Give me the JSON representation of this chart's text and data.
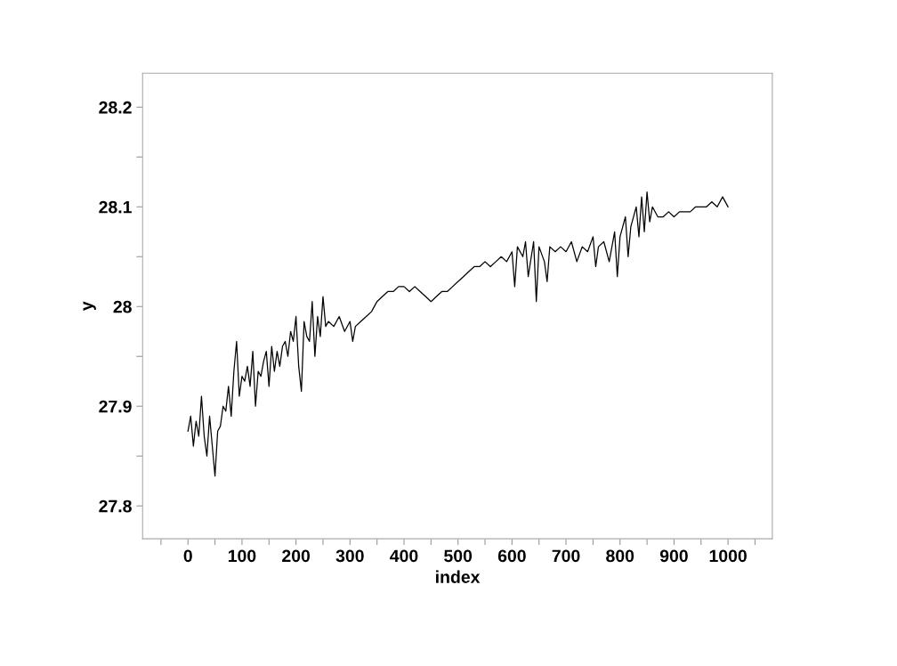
{
  "chart_data": {
    "type": "line",
    "xlabel": "index",
    "ylabel": "y",
    "xlim": [
      -84,
      1082
    ],
    "ylim": [
      27.767,
      28.234
    ],
    "xticks": [
      {
        "value": -50,
        "label": null
      },
      0,
      {
        "value": 50,
        "label": null
      },
      100,
      {
        "value": 150,
        "label": null
      },
      200,
      {
        "value": 250,
        "label": null
      },
      300,
      {
        "value": 350,
        "label": null
      },
      400,
      {
        "value": 450,
        "label": null
      },
      500,
      {
        "value": 550,
        "label": null
      },
      600,
      {
        "value": 650,
        "label": null
      },
      700,
      {
        "value": 750,
        "label": null
      },
      800,
      {
        "value": 850,
        "label": null
      },
      900,
      {
        "value": 950,
        "label": null
      },
      1000,
      {
        "value": 1050,
        "label": null
      }
    ],
    "yticks": [
      27.8,
      {
        "value": 27.85,
        "label": null
      },
      27.9,
      {
        "value": 27.95,
        "label": null
      },
      {
        "value": 28,
        "label": "28"
      },
      {
        "value": 28.05,
        "label": null
      },
      28.1,
      {
        "value": 28.15,
        "label": null
      },
      28.2
    ],
    "grid": false,
    "legend": false,
    "marker": "none",
    "line_style": "solid",
    "series": [
      {
        "color": "#000000",
        "x": [
          0,
          5,
          10,
          15,
          20,
          25,
          30,
          35,
          40,
          45,
          50,
          55,
          60,
          65,
          70,
          75,
          80,
          85,
          90,
          95,
          100,
          105,
          110,
          115,
          120,
          125,
          130,
          135,
          140,
          145,
          150,
          155,
          160,
          165,
          170,
          175,
          180,
          185,
          190,
          195,
          200,
          205,
          210,
          215,
          220,
          225,
          230,
          235,
          240,
          245,
          250,
          255,
          260,
          270,
          280,
          290,
          300,
          305,
          310,
          320,
          330,
          340,
          350,
          360,
          370,
          380,
          390,
          400,
          410,
          420,
          430,
          440,
          450,
          460,
          470,
          480,
          490,
          500,
          510,
          520,
          530,
          540,
          550,
          560,
          570,
          580,
          590,
          600,
          605,
          610,
          620,
          625,
          630,
          640,
          645,
          650,
          660,
          665,
          670,
          680,
          690,
          700,
          710,
          720,
          730,
          740,
          750,
          755,
          760,
          770,
          780,
          790,
          795,
          800,
          810,
          815,
          820,
          830,
          835,
          840,
          845,
          850,
          855,
          860,
          870,
          880,
          890,
          900,
          910,
          920,
          930,
          940,
          950,
          960,
          970,
          980,
          990,
          1000
        ],
        "values": [
          27.875,
          27.89,
          27.86,
          27.885,
          27.87,
          27.91,
          27.87,
          27.85,
          27.89,
          27.86,
          27.83,
          27.875,
          27.88,
          27.9,
          27.895,
          27.92,
          27.89,
          27.935,
          27.965,
          27.91,
          27.93,
          27.925,
          27.94,
          27.92,
          27.955,
          27.9,
          27.935,
          27.93,
          27.945,
          27.955,
          27.92,
          27.96,
          27.935,
          27.955,
          27.94,
          27.96,
          27.965,
          27.95,
          27.975,
          27.965,
          27.99,
          27.94,
          27.915,
          27.985,
          27.97,
          27.965,
          28.005,
          27.95,
          27.99,
          27.97,
          28.01,
          27.98,
          27.985,
          27.98,
          27.99,
          27.975,
          27.985,
          27.965,
          27.98,
          27.985,
          27.99,
          27.995,
          28.005,
          28.01,
          28.015,
          28.015,
          28.02,
          28.02,
          28.015,
          28.02,
          28.015,
          28.01,
          28.005,
          28.01,
          28.015,
          28.015,
          28.02,
          28.025,
          28.03,
          28.035,
          28.04,
          28.04,
          28.045,
          28.04,
          28.045,
          28.05,
          28.045,
          28.055,
          28.02,
          28.06,
          28.05,
          28.065,
          28.03,
          28.065,
          28.005,
          28.06,
          28.045,
          28.025,
          28.06,
          28.055,
          28.06,
          28.055,
          28.065,
          28.045,
          28.06,
          28.055,
          28.07,
          28.04,
          28.06,
          28.065,
          28.045,
          28.075,
          28.03,
          28.07,
          28.09,
          28.05,
          28.08,
          28.1,
          28.07,
          28.11,
          28.075,
          28.115,
          28.085,
          28.1,
          28.09,
          28.09,
          28.095,
          28.09,
          28.095,
          28.095,
          28.095,
          28.1,
          28.1,
          28.1,
          28.105,
          28.1,
          28.11,
          28.1
        ]
      }
    ]
  }
}
